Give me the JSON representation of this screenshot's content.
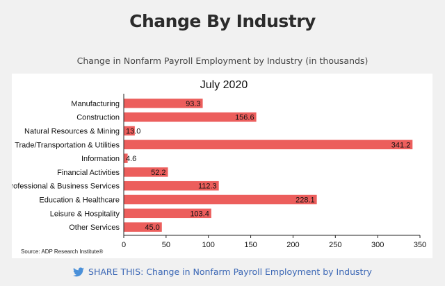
{
  "header": {
    "title": "Change By Industry"
  },
  "chart_subtitle": "Change in Nonfarm Payroll Employment by Industry (in thousands)",
  "chart_data": {
    "type": "bar",
    "orientation": "horizontal",
    "title": "July 2020",
    "categories": [
      "Manufacturing",
      "Construction",
      "Natural Resources & Mining",
      "Trade/Transportation & Utilities",
      "Information",
      "Financial Activities",
      "Professional & Business Services",
      "Education & Healthcare",
      "Leisure & Hospitality",
      "Other Services"
    ],
    "values": [
      93.3,
      156.6,
      13.0,
      341.2,
      4.6,
      52.2,
      112.3,
      228.1,
      103.4,
      45.0
    ],
    "data_labels": [
      "93.3",
      "156.6",
      "13.0",
      "341.2",
      "4.6",
      "52.2",
      "112.3",
      "228.1",
      "103.4",
      "45.0"
    ],
    "xlim": [
      0,
      350
    ],
    "xticks": [
      0,
      50,
      100,
      150,
      200,
      250,
      300,
      350
    ],
    "bar_color": "#ec5e5c",
    "grid": false,
    "source": "Source: ADP Research Institute®"
  },
  "share": {
    "label": "SHARE THIS: Change in Nonfarm Payroll Employment by Industry",
    "icon": "twitter-icon",
    "color": "#3b67b5"
  }
}
